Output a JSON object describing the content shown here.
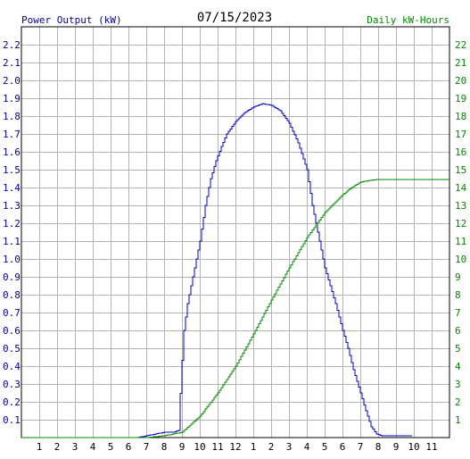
{
  "chart_data": {
    "type": "line",
    "title": "07/15/2023",
    "left_axis_label": "Power Output (kW)",
    "right_axis_label": "Daily kW-Hours",
    "x_ticks": [
      "1",
      "2",
      "3",
      "4",
      "5",
      "6",
      "7",
      "8",
      "9",
      "10",
      "11",
      "12",
      "1",
      "2",
      "3",
      "4",
      "5",
      "6",
      "7",
      "8",
      "9",
      "10",
      "11"
    ],
    "x_range_hours": [
      0,
      24
    ],
    "left_ylim": [
      0,
      2.3
    ],
    "left_ticks": [
      "0.1",
      "0.2",
      "0.3",
      "0.4",
      "0.5",
      "0.6",
      "0.7",
      "0.8",
      "0.9",
      "1.0",
      "1.1",
      "1.2",
      "1.3",
      "1.4",
      "1.5",
      "1.6",
      "1.7",
      "1.8",
      "1.9",
      "2.0",
      "2.1",
      "2.2"
    ],
    "right_ylim": [
      0,
      23
    ],
    "right_ticks": [
      "1",
      "2",
      "3",
      "4",
      "5",
      "6",
      "7",
      "8",
      "9",
      "10",
      "11",
      "12",
      "13",
      "14",
      "15",
      "16",
      "17",
      "18",
      "19",
      "20",
      "21",
      "22"
    ],
    "grid": true,
    "colors": {
      "power": "#0000cc",
      "energy": "#008800",
      "left_axis_text": "#000099",
      "right_axis_text": "#008800",
      "grid": "#b4b4b4",
      "title": "#000000"
    },
    "series": [
      {
        "name": "Power Output (kW)",
        "axis": "left",
        "points": [
          [
            0,
            0
          ],
          [
            6.5,
            0
          ],
          [
            7,
            0.01
          ],
          [
            7.5,
            0.02
          ],
          [
            8,
            0.03
          ],
          [
            8.5,
            0.03
          ],
          [
            8.8,
            0.04
          ],
          [
            8.95,
            0.35
          ],
          [
            9.1,
            0.6
          ],
          [
            9.3,
            0.75
          ],
          [
            9.5,
            0.85
          ],
          [
            9.8,
            1.0
          ],
          [
            10,
            1.1
          ],
          [
            10.3,
            1.3
          ],
          [
            10.6,
            1.45
          ],
          [
            10.9,
            1.55
          ],
          [
            11.2,
            1.63
          ],
          [
            11.5,
            1.7
          ],
          [
            12,
            1.77
          ],
          [
            12.5,
            1.82
          ],
          [
            13,
            1.85
          ],
          [
            13.5,
            1.87
          ],
          [
            14,
            1.86
          ],
          [
            14.5,
            1.83
          ],
          [
            15,
            1.76
          ],
          [
            15.5,
            1.65
          ],
          [
            16,
            1.5
          ],
          [
            16.3,
            1.3
          ],
          [
            16.5,
            1.2
          ],
          [
            16.8,
            1.05
          ],
          [
            17,
            0.95
          ],
          [
            17.3,
            0.85
          ],
          [
            17.6,
            0.75
          ],
          [
            18,
            0.6
          ],
          [
            18.3,
            0.5
          ],
          [
            18.6,
            0.38
          ],
          [
            19,
            0.25
          ],
          [
            19.3,
            0.15
          ],
          [
            19.6,
            0.06
          ],
          [
            19.9,
            0.02
          ],
          [
            20.2,
            0.01
          ],
          [
            21.9,
            0.01
          ]
        ]
      },
      {
        "name": "Daily kW-Hours",
        "axis": "right",
        "points": [
          [
            0,
            0
          ],
          [
            7,
            0.0
          ],
          [
            8,
            0.1
          ],
          [
            9,
            0.3
          ],
          [
            10,
            1.2
          ],
          [
            11,
            2.5
          ],
          [
            12,
            4.0
          ],
          [
            13,
            5.8
          ],
          [
            14,
            7.7
          ],
          [
            15,
            9.5
          ],
          [
            16,
            11.2
          ],
          [
            17,
            12.6
          ],
          [
            18,
            13.6
          ],
          [
            18.5,
            14.0
          ],
          [
            19,
            14.3
          ],
          [
            19.5,
            14.4
          ],
          [
            20,
            14.45
          ],
          [
            24,
            14.45
          ]
        ]
      }
    ]
  }
}
